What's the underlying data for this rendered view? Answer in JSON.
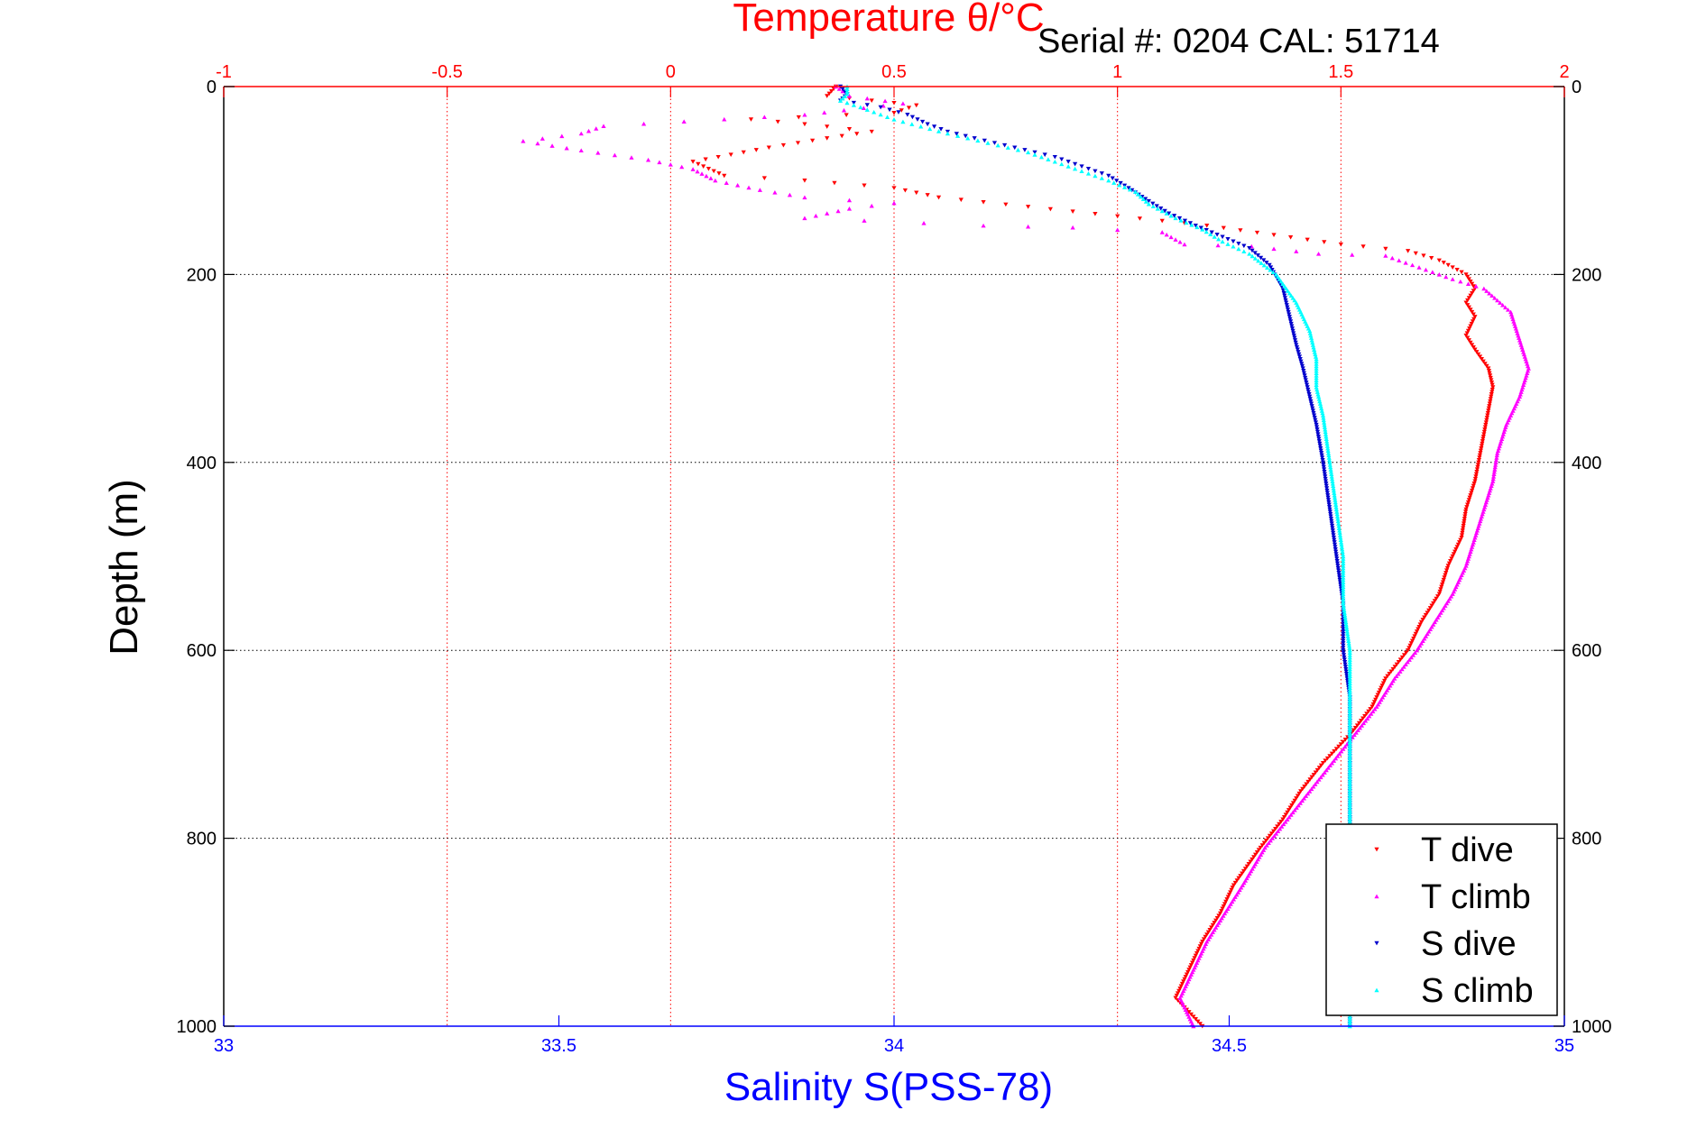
{
  "header": {
    "serial_text": "Serial #: 0204   CAL: 51714"
  },
  "chart_data": {
    "type": "scatter",
    "ylabel": "Depth (m)",
    "ylim": [
      0,
      1000
    ],
    "y_inverted": true,
    "yticks": [
      0,
      200,
      400,
      600,
      800,
      1000
    ],
    "x_top": {
      "label": "Temperature θ/°C",
      "lim": [
        -1,
        2
      ],
      "ticks": [
        -1,
        -0.5,
        0,
        0.5,
        1,
        1.5,
        2
      ],
      "tick_labels": [
        "-1",
        "-0.5",
        "0",
        "0.5",
        "1",
        "1.5",
        "2"
      ],
      "color": "#ff0000"
    },
    "x_bottom": {
      "label": "Salinity S(PSS-78)",
      "lim": [
        33,
        35
      ],
      "ticks": [
        33,
        33.5,
        34,
        34.5,
        35
      ],
      "tick_labels": [
        "33",
        "33.5",
        "34",
        "34.5",
        "35"
      ],
      "color": "#0000ff"
    },
    "grid": true,
    "legend_position": "bottom-right",
    "series": [
      {
        "name": "T dive",
        "axis": "top",
        "color": "#ff0000",
        "marker": "triangle-down",
        "points": [
          [
            0.37,
            0
          ],
          [
            0.35,
            10
          ],
          [
            0.55,
            20
          ],
          [
            0.5,
            28
          ],
          [
            0.18,
            35
          ],
          [
            0.3,
            40
          ],
          [
            0.45,
            48
          ],
          [
            0.35,
            55
          ],
          [
            0.22,
            65
          ],
          [
            0.05,
            80
          ],
          [
            0.12,
            95
          ],
          [
            0.3,
            100
          ],
          [
            0.5,
            108
          ],
          [
            0.6,
            118
          ],
          [
            0.8,
            128
          ],
          [
            1.0,
            138
          ],
          [
            1.2,
            148
          ],
          [
            1.35,
            158
          ],
          [
            1.5,
            168
          ],
          [
            1.65,
            175
          ],
          [
            1.72,
            185
          ],
          [
            1.78,
            200
          ],
          [
            1.8,
            215
          ],
          [
            1.78,
            230
          ],
          [
            1.8,
            245
          ],
          [
            1.78,
            265
          ],
          [
            1.8,
            280
          ],
          [
            1.83,
            300
          ],
          [
            1.84,
            320
          ],
          [
            1.83,
            345
          ],
          [
            1.82,
            370
          ],
          [
            1.81,
            395
          ],
          [
            1.8,
            420
          ],
          [
            1.78,
            450
          ],
          [
            1.77,
            480
          ],
          [
            1.74,
            510
          ],
          [
            1.72,
            540
          ],
          [
            1.68,
            570
          ],
          [
            1.65,
            600
          ],
          [
            1.6,
            630
          ],
          [
            1.57,
            660
          ],
          [
            1.52,
            690
          ],
          [
            1.46,
            720
          ],
          [
            1.41,
            750
          ],
          [
            1.37,
            780
          ],
          [
            1.32,
            810
          ],
          [
            1.26,
            850
          ],
          [
            1.23,
            880
          ],
          [
            1.19,
            910
          ],
          [
            1.16,
            940
          ],
          [
            1.13,
            970
          ],
          [
            1.19,
            1000
          ]
        ]
      },
      {
        "name": "T climb",
        "axis": "top",
        "color": "#ff00ff",
        "marker": "triangle-up",
        "points": [
          [
            0.37,
            0
          ],
          [
            0.4,
            10
          ],
          [
            0.52,
            18
          ],
          [
            0.3,
            30
          ],
          [
            -0.15,
            42
          ],
          [
            -0.2,
            50
          ],
          [
            -0.33,
            58
          ],
          [
            -0.2,
            68
          ],
          [
            -0.05,
            78
          ],
          [
            0.05,
            88
          ],
          [
            0.1,
            100
          ],
          [
            0.2,
            110
          ],
          [
            0.3,
            118
          ],
          [
            0.5,
            124
          ],
          [
            0.4,
            130
          ],
          [
            0.3,
            140
          ],
          [
            0.7,
            148
          ],
          [
            0.9,
            150
          ],
          [
            1.1,
            155
          ],
          [
            1.15,
            168
          ],
          [
            1.3,
            170
          ],
          [
            1.45,
            178
          ],
          [
            1.6,
            180
          ],
          [
            1.75,
            205
          ],
          [
            1.82,
            215
          ],
          [
            1.88,
            240
          ],
          [
            1.9,
            270
          ],
          [
            1.92,
            300
          ],
          [
            1.9,
            330
          ],
          [
            1.87,
            360
          ],
          [
            1.85,
            390
          ],
          [
            1.84,
            420
          ],
          [
            1.82,
            450
          ],
          [
            1.8,
            480
          ],
          [
            1.78,
            510
          ],
          [
            1.75,
            540
          ],
          [
            1.71,
            570
          ],
          [
            1.67,
            600
          ],
          [
            1.62,
            630
          ],
          [
            1.58,
            660
          ],
          [
            1.53,
            690
          ],
          [
            1.48,
            720
          ],
          [
            1.43,
            750
          ],
          [
            1.38,
            780
          ],
          [
            1.33,
            810
          ],
          [
            1.28,
            850
          ],
          [
            1.24,
            880
          ],
          [
            1.2,
            910
          ],
          [
            1.17,
            940
          ],
          [
            1.14,
            970
          ],
          [
            1.17,
            1000
          ]
        ]
      },
      {
        "name": "S dive",
        "axis": "bottom",
        "color": "#0000cc",
        "marker": "triangle-down",
        "points": [
          [
            33.92,
            0
          ],
          [
            33.93,
            8
          ],
          [
            33.92,
            15
          ],
          [
            33.98,
            22
          ],
          [
            34.02,
            30
          ],
          [
            34.05,
            40
          ],
          [
            34.08,
            48
          ],
          [
            34.12,
            55
          ],
          [
            34.18,
            65
          ],
          [
            34.24,
            75
          ],
          [
            34.28,
            85
          ],
          [
            34.32,
            95
          ],
          [
            34.35,
            108
          ],
          [
            34.38,
            122
          ],
          [
            34.41,
            135
          ],
          [
            34.45,
            148
          ],
          [
            34.49,
            160
          ],
          [
            34.53,
            172
          ],
          [
            34.56,
            190
          ],
          [
            34.58,
            215
          ],
          [
            34.59,
            245
          ],
          [
            34.6,
            275
          ],
          [
            34.61,
            300
          ],
          [
            34.62,
            330
          ],
          [
            34.63,
            360
          ],
          [
            34.64,
            400
          ],
          [
            34.65,
            450
          ],
          [
            34.66,
            500
          ],
          [
            34.67,
            550
          ],
          [
            34.67,
            600
          ],
          [
            34.68,
            650
          ],
          [
            34.68,
            700
          ],
          [
            34.68,
            750
          ],
          [
            34.68,
            800
          ],
          [
            34.68,
            850
          ],
          [
            34.68,
            900
          ],
          [
            34.68,
            950
          ],
          [
            34.68,
            1000
          ]
        ]
      },
      {
        "name": "S climb",
        "axis": "bottom",
        "color": "#00ffff",
        "marker": "triangle-up",
        "points": [
          [
            33.93,
            0
          ],
          [
            33.93,
            8
          ],
          [
            33.92,
            15
          ],
          [
            33.95,
            22
          ],
          [
            34.0,
            35
          ],
          [
            34.08,
            50
          ],
          [
            34.14,
            60
          ],
          [
            34.2,
            70
          ],
          [
            34.24,
            80
          ],
          [
            34.28,
            90
          ],
          [
            34.32,
            100
          ],
          [
            34.36,
            112
          ],
          [
            34.38,
            125
          ],
          [
            34.42,
            140
          ],
          [
            34.46,
            152
          ],
          [
            34.49,
            165
          ],
          [
            34.53,
            178
          ],
          [
            34.57,
            200
          ],
          [
            34.6,
            230
          ],
          [
            34.62,
            260
          ],
          [
            34.63,
            290
          ],
          [
            34.63,
            320
          ],
          [
            34.64,
            350
          ],
          [
            34.65,
            400
          ],
          [
            34.66,
            450
          ],
          [
            34.67,
            500
          ],
          [
            34.67,
            550
          ],
          [
            34.68,
            600
          ],
          [
            34.68,
            650
          ],
          [
            34.68,
            700
          ],
          [
            34.68,
            750
          ],
          [
            34.68,
            800
          ],
          [
            34.68,
            850
          ],
          [
            34.68,
            900
          ],
          [
            34.68,
            950
          ],
          [
            34.68,
            1000
          ]
        ]
      }
    ]
  }
}
